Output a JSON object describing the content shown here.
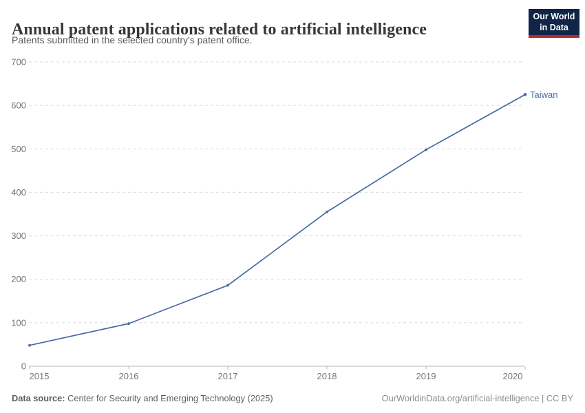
{
  "header": {
    "title": "Annual patent applications related to artificial intelligence",
    "subtitle": "Patents submitted in the selected country's patent office."
  },
  "logo": {
    "line1": "Our World",
    "line2": "in Data",
    "bg_color": "#102547",
    "bar_color": "#b52c2a"
  },
  "chart_data": {
    "type": "line",
    "title": "Annual patent applications related to artificial intelligence",
    "subtitle": "Patents submitted in the selected country's patent office.",
    "x": [
      2015,
      2016,
      2017,
      2018,
      2019,
      2020
    ],
    "series": [
      {
        "name": "Taiwan",
        "values": [
          48,
          98,
          186,
          355,
          498,
          625
        ],
        "color": "#4669A5"
      }
    ],
    "ylim": [
      0,
      700
    ],
    "yticks": [
      0,
      100,
      200,
      300,
      400,
      500,
      600,
      700
    ],
    "xlabel": "",
    "ylabel": "",
    "grid": true,
    "grid_style": "dashed",
    "legend_position": "end-of-line-label"
  },
  "colors": {
    "grid": "#d9d9d9",
    "axis": "#b9b9b9",
    "tick_text": "#757575",
    "entity_label": "#4669A5"
  },
  "footer": {
    "data_source_label": "Data source:",
    "data_source": " Center for Security and Emerging Technology (2025)",
    "attribution": "OurWorldinData.org/artificial-intelligence | CC BY"
  }
}
